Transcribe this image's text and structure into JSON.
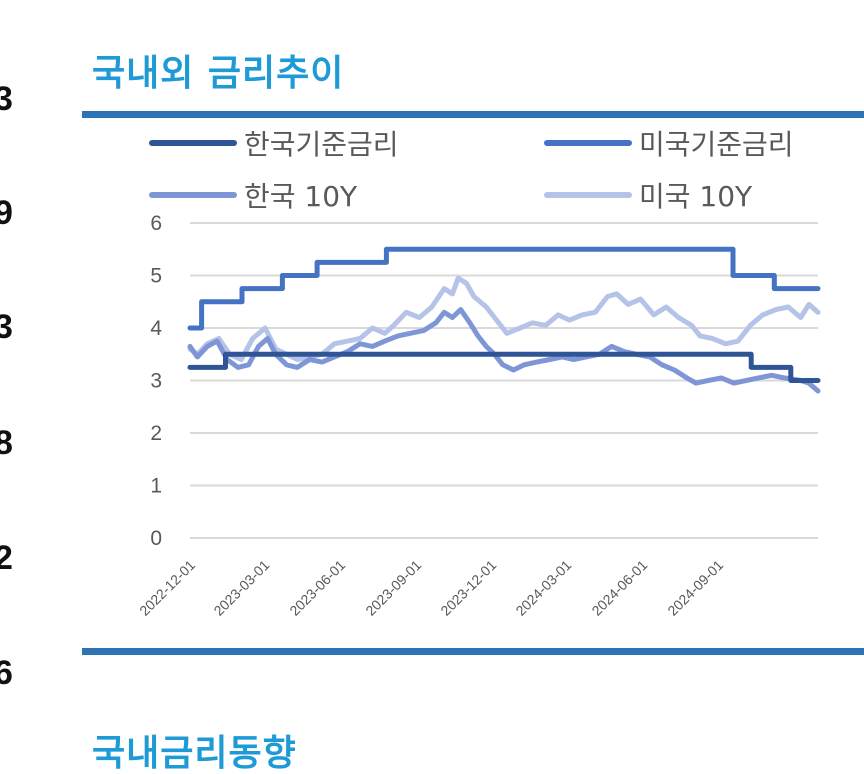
{
  "left_numbers": [
    "3",
    "9",
    "3",
    "8",
    "2",
    "6"
  ],
  "sections": {
    "title_1": "국내외 금리추이",
    "title_2": "국내금리동향"
  },
  "colors": {
    "title": "#1e9ad6",
    "rule": "#2e74b5",
    "korea_base": "#2f5597",
    "us_base": "#4472c4",
    "korea_10y": "#7f96d6",
    "us_10y": "#b4c3e7",
    "grid": "#d9d9d9"
  },
  "chart_data": {
    "type": "line",
    "title": "",
    "xlabel": "",
    "ylabel": "",
    "ylim": [
      0,
      6
    ],
    "yticks": [
      "0",
      "1",
      "2",
      "3",
      "4",
      "5",
      "6"
    ],
    "xlim": [
      "2022-12-01",
      "2024-12-31"
    ],
    "xticks": [
      "2022-12-01",
      "2023-03-01",
      "2023-06-01",
      "2023-09-01",
      "2023-12-01",
      "2024-03-01",
      "2024-06-01",
      "2024-09-01"
    ],
    "grid": true,
    "legend_position": "top",
    "series": [
      {
        "name": "한국기준금리",
        "color": "#2f5597",
        "points": [
          [
            "2022-12-01",
            3.25
          ],
          [
            "2023-01-13",
            3.25
          ],
          [
            "2023-01-13",
            3.5
          ],
          [
            "2024-10-11",
            3.5
          ],
          [
            "2024-10-11",
            3.25
          ],
          [
            "2024-11-28",
            3.25
          ],
          [
            "2024-11-28",
            3.0
          ],
          [
            "2024-12-31",
            3.0
          ]
        ]
      },
      {
        "name": "미국기준금리",
        "color": "#4472c4",
        "points": [
          [
            "2022-12-01",
            4.0
          ],
          [
            "2022-12-15",
            4.0
          ],
          [
            "2022-12-15",
            4.5
          ],
          [
            "2023-02-02",
            4.5
          ],
          [
            "2023-02-02",
            4.75
          ],
          [
            "2023-03-23",
            4.75
          ],
          [
            "2023-03-23",
            5.0
          ],
          [
            "2023-05-04",
            5.0
          ],
          [
            "2023-05-04",
            5.25
          ],
          [
            "2023-07-27",
            5.25
          ],
          [
            "2023-07-27",
            5.5
          ],
          [
            "2024-09-19",
            5.5
          ],
          [
            "2024-09-19",
            5.0
          ],
          [
            "2024-11-08",
            5.0
          ],
          [
            "2024-11-08",
            4.75
          ],
          [
            "2024-12-31",
            4.75
          ]
        ]
      },
      {
        "name": "한국 10Y",
        "color": "#7f96d6",
        "points": [
          [
            "2022-12-01",
            3.65
          ],
          [
            "2022-12-10",
            3.45
          ],
          [
            "2022-12-22",
            3.65
          ],
          [
            "2023-01-03",
            3.75
          ],
          [
            "2023-01-15",
            3.4
          ],
          [
            "2023-01-28",
            3.25
          ],
          [
            "2023-02-10",
            3.3
          ],
          [
            "2023-02-22",
            3.65
          ],
          [
            "2023-03-05",
            3.8
          ],
          [
            "2023-03-15",
            3.5
          ],
          [
            "2023-03-28",
            3.3
          ],
          [
            "2023-04-10",
            3.25
          ],
          [
            "2023-04-25",
            3.4
          ],
          [
            "2023-05-10",
            3.35
          ],
          [
            "2023-05-25",
            3.45
          ],
          [
            "2023-06-10",
            3.55
          ],
          [
            "2023-06-25",
            3.7
          ],
          [
            "2023-07-10",
            3.65
          ],
          [
            "2023-07-25",
            3.75
          ],
          [
            "2023-08-10",
            3.85
          ],
          [
            "2023-08-25",
            3.9
          ],
          [
            "2023-09-10",
            3.95
          ],
          [
            "2023-09-25",
            4.1
          ],
          [
            "2023-10-05",
            4.3
          ],
          [
            "2023-10-15",
            4.2
          ],
          [
            "2023-10-25",
            4.35
          ],
          [
            "2023-11-05",
            4.1
          ],
          [
            "2023-11-15",
            3.85
          ],
          [
            "2023-11-25",
            3.65
          ],
          [
            "2023-12-05",
            3.5
          ],
          [
            "2023-12-15",
            3.3
          ],
          [
            "2023-12-28",
            3.2
          ],
          [
            "2024-01-10",
            3.3
          ],
          [
            "2024-01-25",
            3.35
          ],
          [
            "2024-02-10",
            3.4
          ],
          [
            "2024-02-25",
            3.45
          ],
          [
            "2024-03-10",
            3.4
          ],
          [
            "2024-03-25",
            3.45
          ],
          [
            "2024-04-10",
            3.5
          ],
          [
            "2024-04-25",
            3.65
          ],
          [
            "2024-05-10",
            3.55
          ],
          [
            "2024-05-25",
            3.5
          ],
          [
            "2024-06-10",
            3.45
          ],
          [
            "2024-06-25",
            3.3
          ],
          [
            "2024-07-10",
            3.2
          ],
          [
            "2024-07-25",
            3.05
          ],
          [
            "2024-08-05",
            2.95
          ],
          [
            "2024-08-20",
            3.0
          ],
          [
            "2024-09-05",
            3.05
          ],
          [
            "2024-09-20",
            2.95
          ],
          [
            "2024-10-05",
            3.0
          ],
          [
            "2024-10-20",
            3.05
          ],
          [
            "2024-11-05",
            3.1
          ],
          [
            "2024-11-20",
            3.05
          ],
          [
            "2024-12-10",
            3.0
          ],
          [
            "2024-12-20",
            2.95
          ],
          [
            "2024-12-31",
            2.8
          ]
        ]
      },
      {
        "name": "미국 10Y",
        "color": "#b4c3e7",
        "points": [
          [
            "2022-12-01",
            3.6
          ],
          [
            "2022-12-10",
            3.5
          ],
          [
            "2022-12-22",
            3.7
          ],
          [
            "2023-01-05",
            3.8
          ],
          [
            "2023-01-18",
            3.5
          ],
          [
            "2023-02-01",
            3.4
          ],
          [
            "2023-02-15",
            3.8
          ],
          [
            "2023-03-02",
            4.0
          ],
          [
            "2023-03-15",
            3.6
          ],
          [
            "2023-03-28",
            3.5
          ],
          [
            "2023-04-10",
            3.4
          ],
          [
            "2023-04-25",
            3.45
          ],
          [
            "2023-05-10",
            3.5
          ],
          [
            "2023-05-25",
            3.7
          ],
          [
            "2023-06-10",
            3.75
          ],
          [
            "2023-06-25",
            3.8
          ],
          [
            "2023-07-10",
            4.0
          ],
          [
            "2023-07-25",
            3.9
          ],
          [
            "2023-08-05",
            4.05
          ],
          [
            "2023-08-20",
            4.3
          ],
          [
            "2023-09-05",
            4.2
          ],
          [
            "2023-09-20",
            4.4
          ],
          [
            "2023-10-05",
            4.75
          ],
          [
            "2023-10-15",
            4.65
          ],
          [
            "2023-10-22",
            4.95
          ],
          [
            "2023-11-01",
            4.85
          ],
          [
            "2023-11-10",
            4.6
          ],
          [
            "2023-11-25",
            4.4
          ],
          [
            "2023-12-05",
            4.2
          ],
          [
            "2023-12-20",
            3.9
          ],
          [
            "2024-01-05",
            4.0
          ],
          [
            "2024-01-20",
            4.1
          ],
          [
            "2024-02-05",
            4.05
          ],
          [
            "2024-02-20",
            4.25
          ],
          [
            "2024-03-05",
            4.15
          ],
          [
            "2024-03-20",
            4.25
          ],
          [
            "2024-04-05",
            4.3
          ],
          [
            "2024-04-20",
            4.6
          ],
          [
            "2024-05-01",
            4.65
          ],
          [
            "2024-05-15",
            4.45
          ],
          [
            "2024-05-30",
            4.55
          ],
          [
            "2024-06-15",
            4.25
          ],
          [
            "2024-06-30",
            4.4
          ],
          [
            "2024-07-15",
            4.2
          ],
          [
            "2024-07-31",
            4.05
          ],
          [
            "2024-08-10",
            3.85
          ],
          [
            "2024-08-25",
            3.8
          ],
          [
            "2024-09-10",
            3.7
          ],
          [
            "2024-09-25",
            3.75
          ],
          [
            "2024-10-10",
            4.05
          ],
          [
            "2024-10-25",
            4.25
          ],
          [
            "2024-11-10",
            4.35
          ],
          [
            "2024-11-25",
            4.4
          ],
          [
            "2024-12-10",
            4.2
          ],
          [
            "2024-12-20",
            4.45
          ],
          [
            "2024-12-31",
            4.3
          ]
        ]
      }
    ]
  }
}
